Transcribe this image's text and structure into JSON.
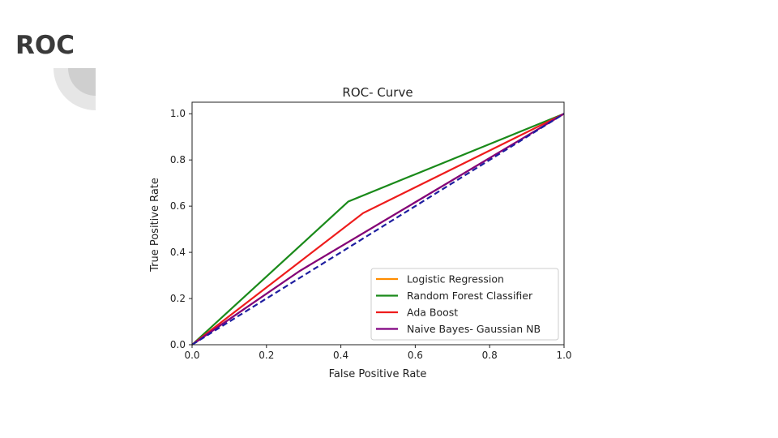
{
  "slide": {
    "title": "ROC",
    "accent_color": "#d9d9d9"
  },
  "chart_data": {
    "type": "line",
    "title": "ROC- Curve",
    "xlabel": "False Positive Rate",
    "ylabel": "True Positive Rate",
    "xlim": [
      0,
      1
    ],
    "ylim": [
      0,
      1.05
    ],
    "xticks": [
      "0.0",
      "0.2",
      "0.4",
      "0.6",
      "0.8",
      "1.0"
    ],
    "yticks": [
      "0.0",
      "0.2",
      "0.4",
      "0.6",
      "0.8",
      "1.0"
    ],
    "grid": false,
    "legend_position": "lower-right",
    "series": [
      {
        "name": "Logistic Regression",
        "color": "#ff8c00",
        "x": [
          0,
          0.29,
          1
        ],
        "y": [
          0,
          0.32,
          1
        ]
      },
      {
        "name": "Random Forest Classifier",
        "color": "#1a8a1a",
        "x": [
          0,
          0.42,
          1
        ],
        "y": [
          0,
          0.62,
          1
        ]
      },
      {
        "name": "Ada Boost",
        "color": "#ee1c1c",
        "x": [
          0,
          0.46,
          1
        ],
        "y": [
          0,
          0.57,
          1
        ]
      },
      {
        "name": "Naive Bayes- Gaussian NB",
        "color": "#800080",
        "x": [
          0,
          0.29,
          1
        ],
        "y": [
          0,
          0.32,
          1
        ]
      }
    ],
    "reference_line": {
      "style": "dashed",
      "color": "#1e1ea0",
      "x": [
        0,
        1
      ],
      "y": [
        0,
        1
      ]
    }
  }
}
